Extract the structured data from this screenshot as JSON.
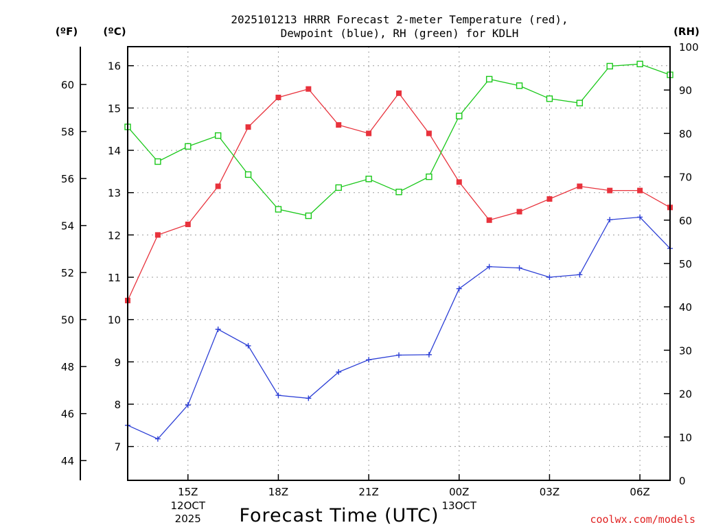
{
  "chart_data": {
    "type": "line",
    "title_line1": "2025101213 HRRR Forecast 2-meter Temperature (red),",
    "title_line2": "Dewpoint (blue), RH (green) for KDLH",
    "xlabel": "Forecast Time (UTC)",
    "credit": "coolwx.com/models",
    "unit_f": "(ºF)",
    "unit_c": "(ºC)",
    "unit_rh": "(RH)",
    "x_hours": [
      13,
      14,
      15,
      16,
      17,
      18,
      19,
      20,
      21,
      22,
      23,
      24,
      25,
      26,
      27,
      28,
      29,
      30,
      31
    ],
    "xlim": [
      13,
      31
    ],
    "x_ticks": [
      {
        "hour": 15,
        "line1": "15Z",
        "line2": "12OCT",
        "line3": "2025"
      },
      {
        "hour": 18,
        "line1": "18Z",
        "line2": "",
        "line3": ""
      },
      {
        "hour": 21,
        "line1": "21Z",
        "line2": "",
        "line3": ""
      },
      {
        "hour": 24,
        "line1": "00Z",
        "line2": "13OCT",
        "line3": ""
      },
      {
        "hour": 27,
        "line1": "03Z",
        "line2": "",
        "line3": ""
      },
      {
        "hour": 30,
        "line1": "06Z",
        "line2": "",
        "line3": ""
      }
    ],
    "ylim_c": [
      6.2,
      16.45
    ],
    "y_ticks_c": [
      7,
      8,
      9,
      10,
      11,
      12,
      13,
      14,
      15,
      16
    ],
    "ylim_f": [
      43.16,
      61.61
    ],
    "y_ticks_f": [
      44,
      46,
      48,
      50,
      52,
      54,
      56,
      58,
      60
    ],
    "ylim_rh": [
      0,
      100
    ],
    "y_ticks_rh": [
      0,
      10,
      20,
      30,
      40,
      50,
      60,
      70,
      80,
      90,
      100
    ],
    "series": [
      {
        "name": "Temperature",
        "axis": "c",
        "color": "#e8323c",
        "marker": "filled-square",
        "values": [
          10.45,
          12.0,
          12.25,
          13.15,
          14.55,
          15.25,
          15.45,
          14.6,
          14.4,
          15.35,
          14.4,
          13.25,
          12.35,
          12.55,
          12.85,
          13.15,
          13.05,
          13.05,
          12.65
        ]
      },
      {
        "name": "Dewpoint",
        "axis": "c",
        "color": "#2c3fd6",
        "marker": "plus",
        "values": [
          7.5,
          7.18,
          7.98,
          9.77,
          9.38,
          8.21,
          8.14,
          8.76,
          9.05,
          9.16,
          9.17,
          10.73,
          11.25,
          11.22,
          11.0,
          11.06,
          12.36,
          12.42,
          11.68
        ]
      },
      {
        "name": "RH",
        "axis": "rh",
        "color": "#19c819",
        "marker": "open-square",
        "values": [
          81.5,
          73.5,
          77.0,
          79.5,
          70.5,
          62.5,
          61.0,
          67.5,
          69.5,
          66.5,
          70.0,
          84.0,
          92.5,
          91.0,
          88.0,
          87.0,
          95.5,
          96.0,
          93.5
        ]
      }
    ]
  }
}
